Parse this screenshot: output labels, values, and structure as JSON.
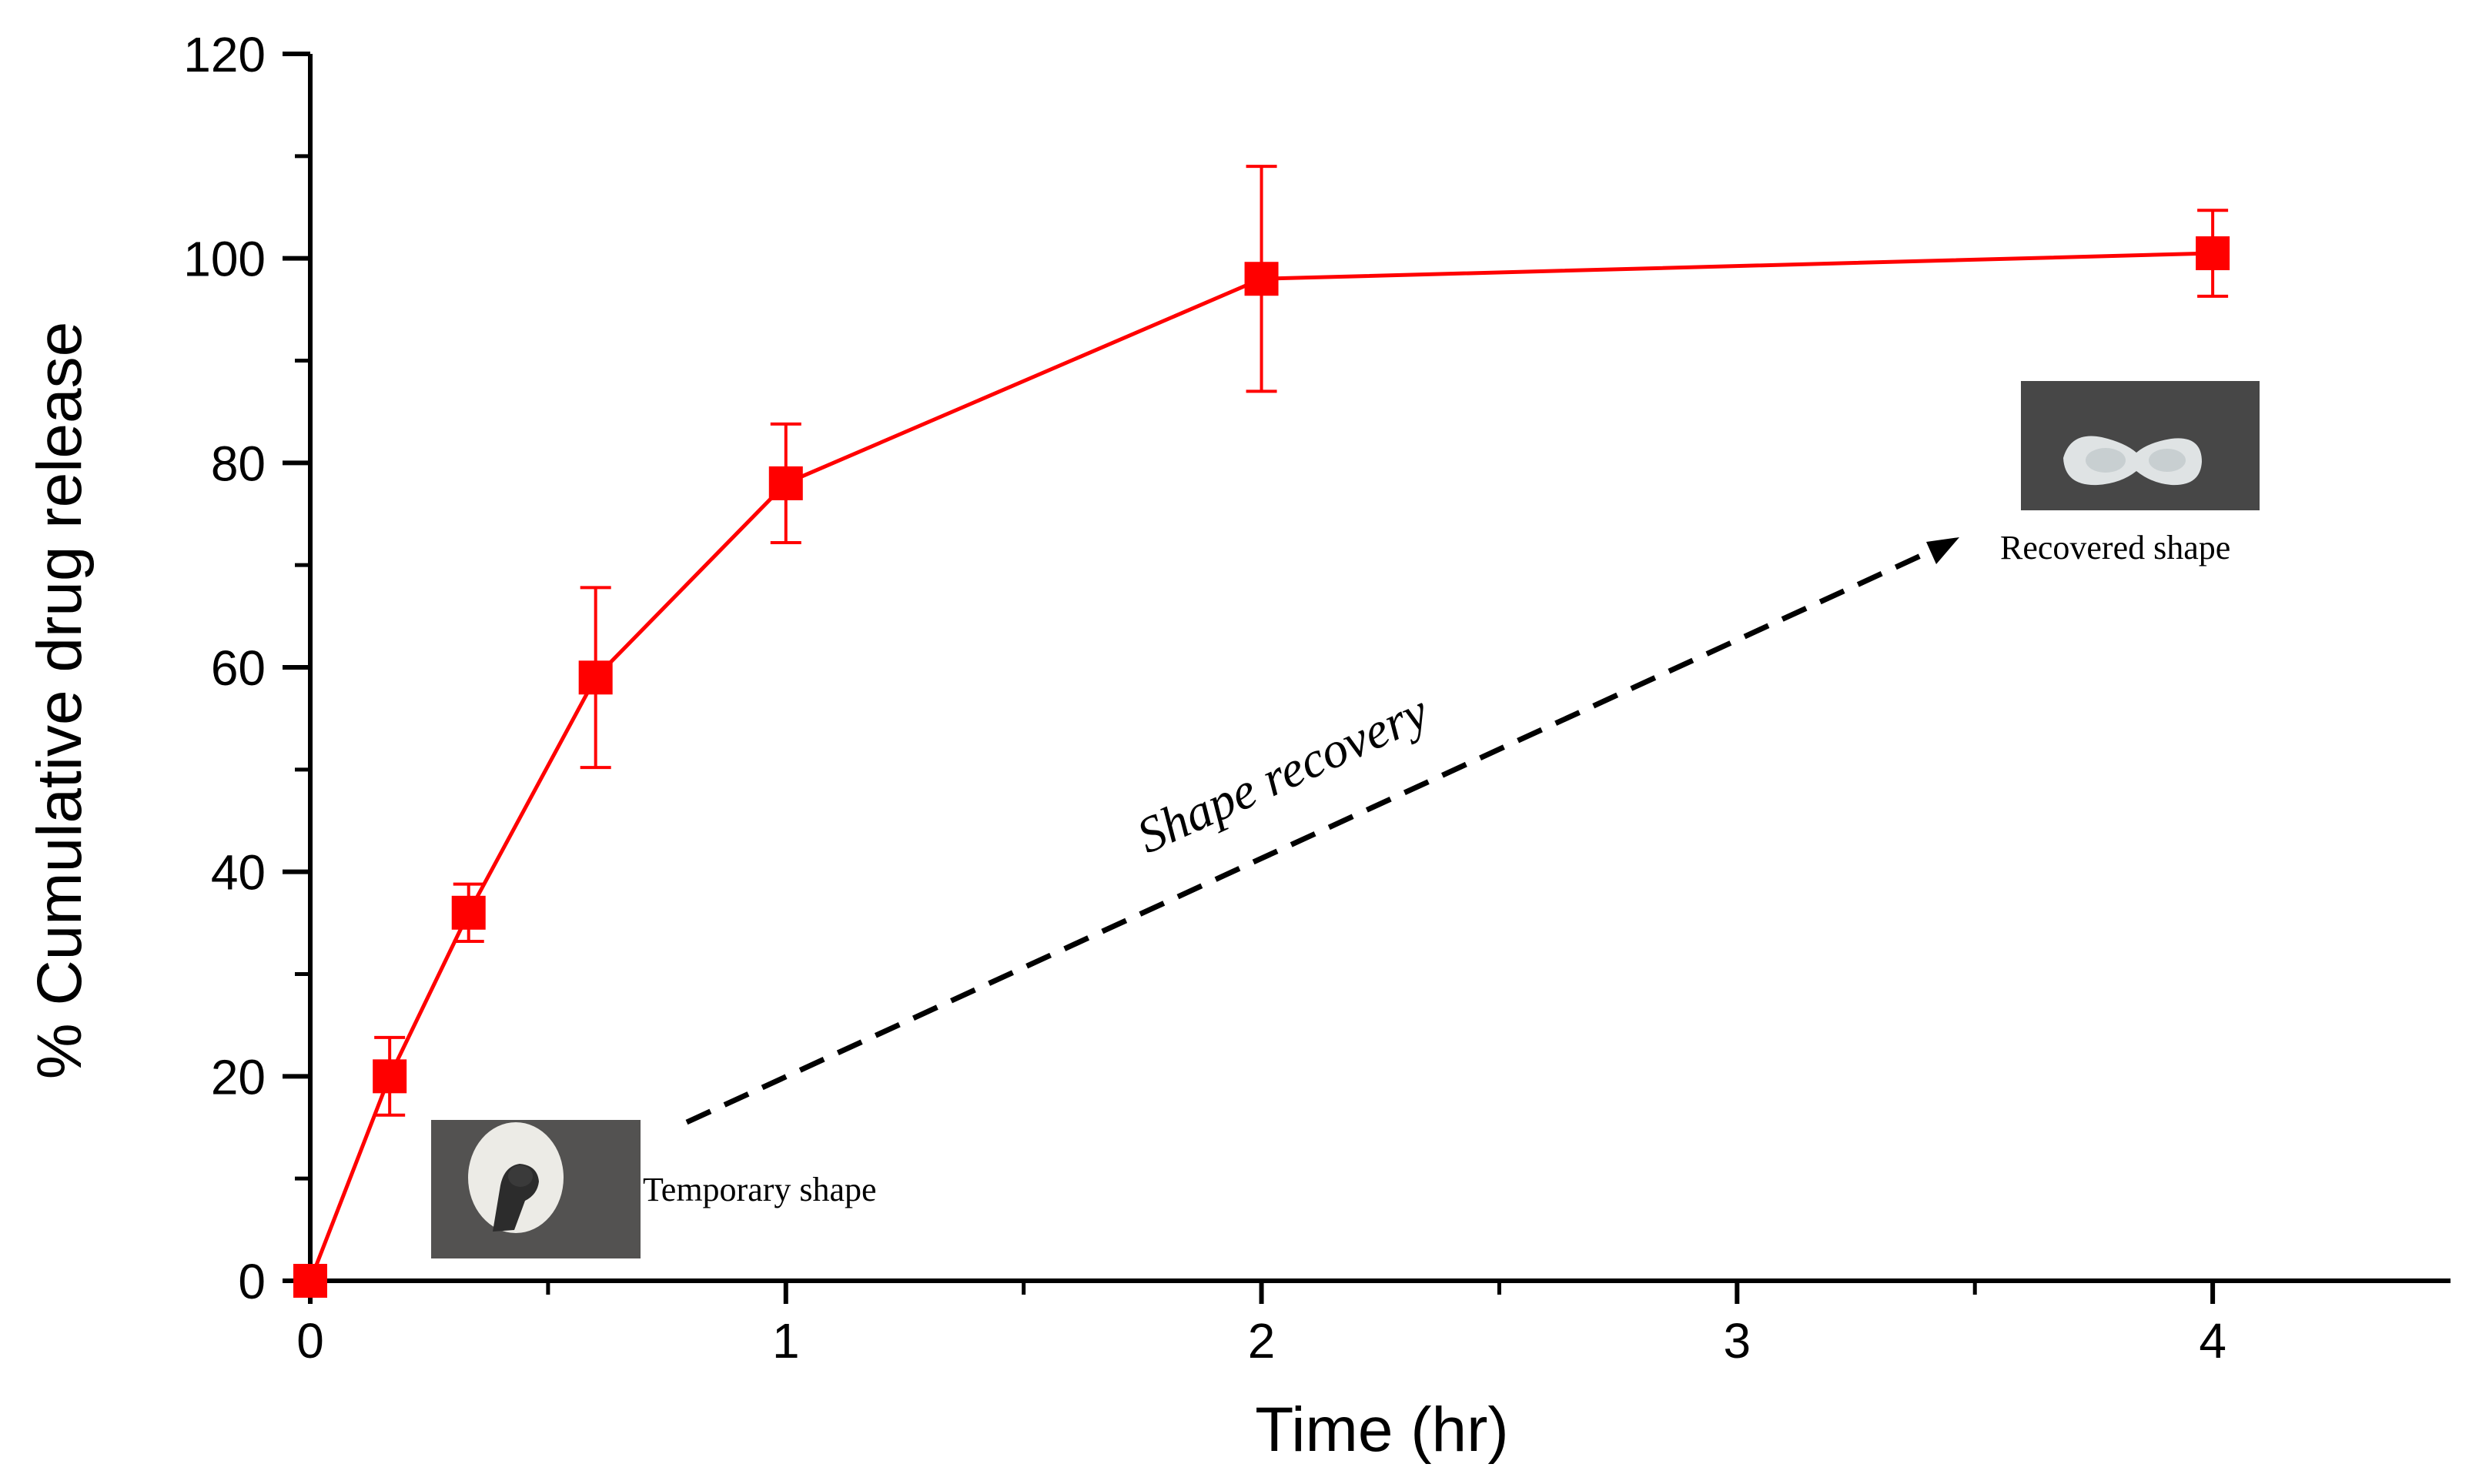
{
  "chart_data": {
    "type": "line",
    "title": "",
    "xlabel": "Time (hr)",
    "ylabel": "% Cumulative drug release",
    "xlim": [
      0,
      4.5
    ],
    "ylim": [
      0,
      120
    ],
    "x_ticks": [
      0,
      1,
      2,
      3,
      4
    ],
    "y_ticks": [
      0,
      20,
      40,
      60,
      80,
      100,
      120
    ],
    "grid": false,
    "legend": "none",
    "series": [
      {
        "color": "#ff0000",
        "marker": "square",
        "points": [
          {
            "x": 0,
            "y": 0,
            "err": 0
          },
          {
            "x": 0.167,
            "y": 20,
            "err": 3.8
          },
          {
            "x": 0.333,
            "y": 36,
            "err": 2.8
          },
          {
            "x": 0.6,
            "y": 59,
            "err": 8.8
          },
          {
            "x": 1,
            "y": 78,
            "err": 5.8
          },
          {
            "x": 2,
            "y": 98,
            "err": 11
          },
          {
            "x": 4,
            "y": 100.5,
            "err": 4.2
          }
        ]
      }
    ],
    "annotations": {
      "temporary_label": "Temporary shape",
      "recovered_label": "Recovered shape",
      "arrow_label": "Shape recovery"
    }
  }
}
